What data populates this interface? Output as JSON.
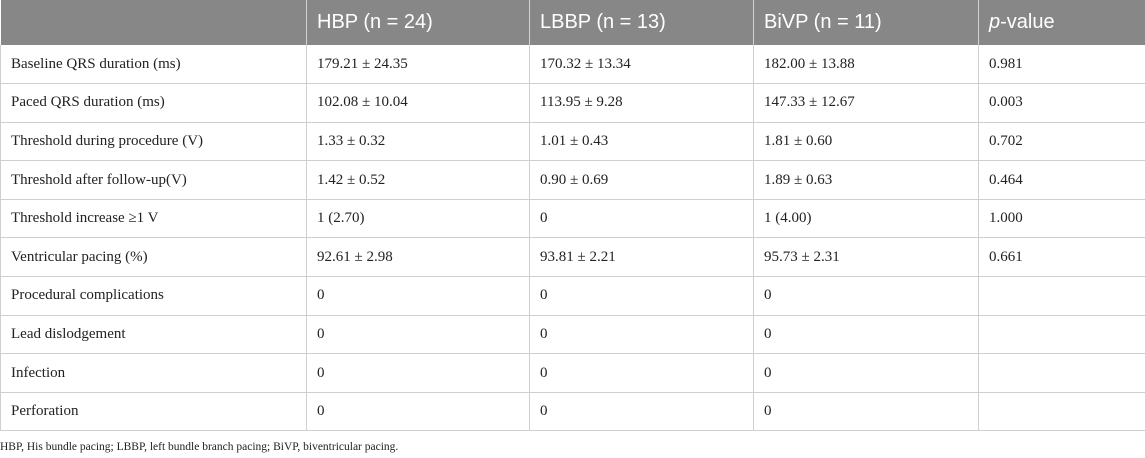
{
  "table": {
    "headers": [
      {
        "text": ""
      },
      {
        "text": "HBP (n = 24)"
      },
      {
        "text": "LBBP (n = 13)"
      },
      {
        "text": "BiVP (n = 11)"
      },
      {
        "italic": "p",
        "rest": "-value"
      }
    ],
    "rows": [
      [
        "Baseline QRS duration (ms)",
        "179.21 ± 24.35",
        "170.32 ± 13.34",
        "182.00 ± 13.88",
        "0.981"
      ],
      [
        "Paced QRS duration (ms)",
        "102.08 ± 10.04",
        "113.95 ± 9.28",
        "147.33 ± 12.67",
        "0.003"
      ],
      [
        "Threshold during procedure (V)",
        "1.33 ± 0.32",
        "1.01 ± 0.43",
        "1.81 ± 0.60",
        "0.702"
      ],
      [
        "Threshold after follow-up(V)",
        "1.42 ± 0.52",
        "0.90 ± 0.69",
        "1.89 ± 0.63",
        "0.464"
      ],
      [
        "Threshold increase ≥1 V",
        "1 (2.70)",
        "0",
        "1 (4.00)",
        "1.000"
      ],
      [
        "Ventricular pacing (%)",
        "92.61 ± 2.98",
        "93.81 ± 2.21",
        "95.73 ± 2.31",
        "0.661"
      ],
      [
        "Procedural complications",
        "0",
        "0",
        "0",
        ""
      ],
      [
        "Lead dislodgement",
        "0",
        "0",
        "0",
        ""
      ],
      [
        "Infection",
        "0",
        "0",
        "0",
        ""
      ],
      [
        "Perforation",
        "0",
        "0",
        "0",
        ""
      ]
    ]
  },
  "footnote": "HBP, His bundle pacing; LBBP, left bundle branch pacing; BiVP, biventricular pacing.",
  "colors": {
    "header_bg": "#878787",
    "header_text": "#ffffff",
    "grid": "#cfcfcf"
  }
}
